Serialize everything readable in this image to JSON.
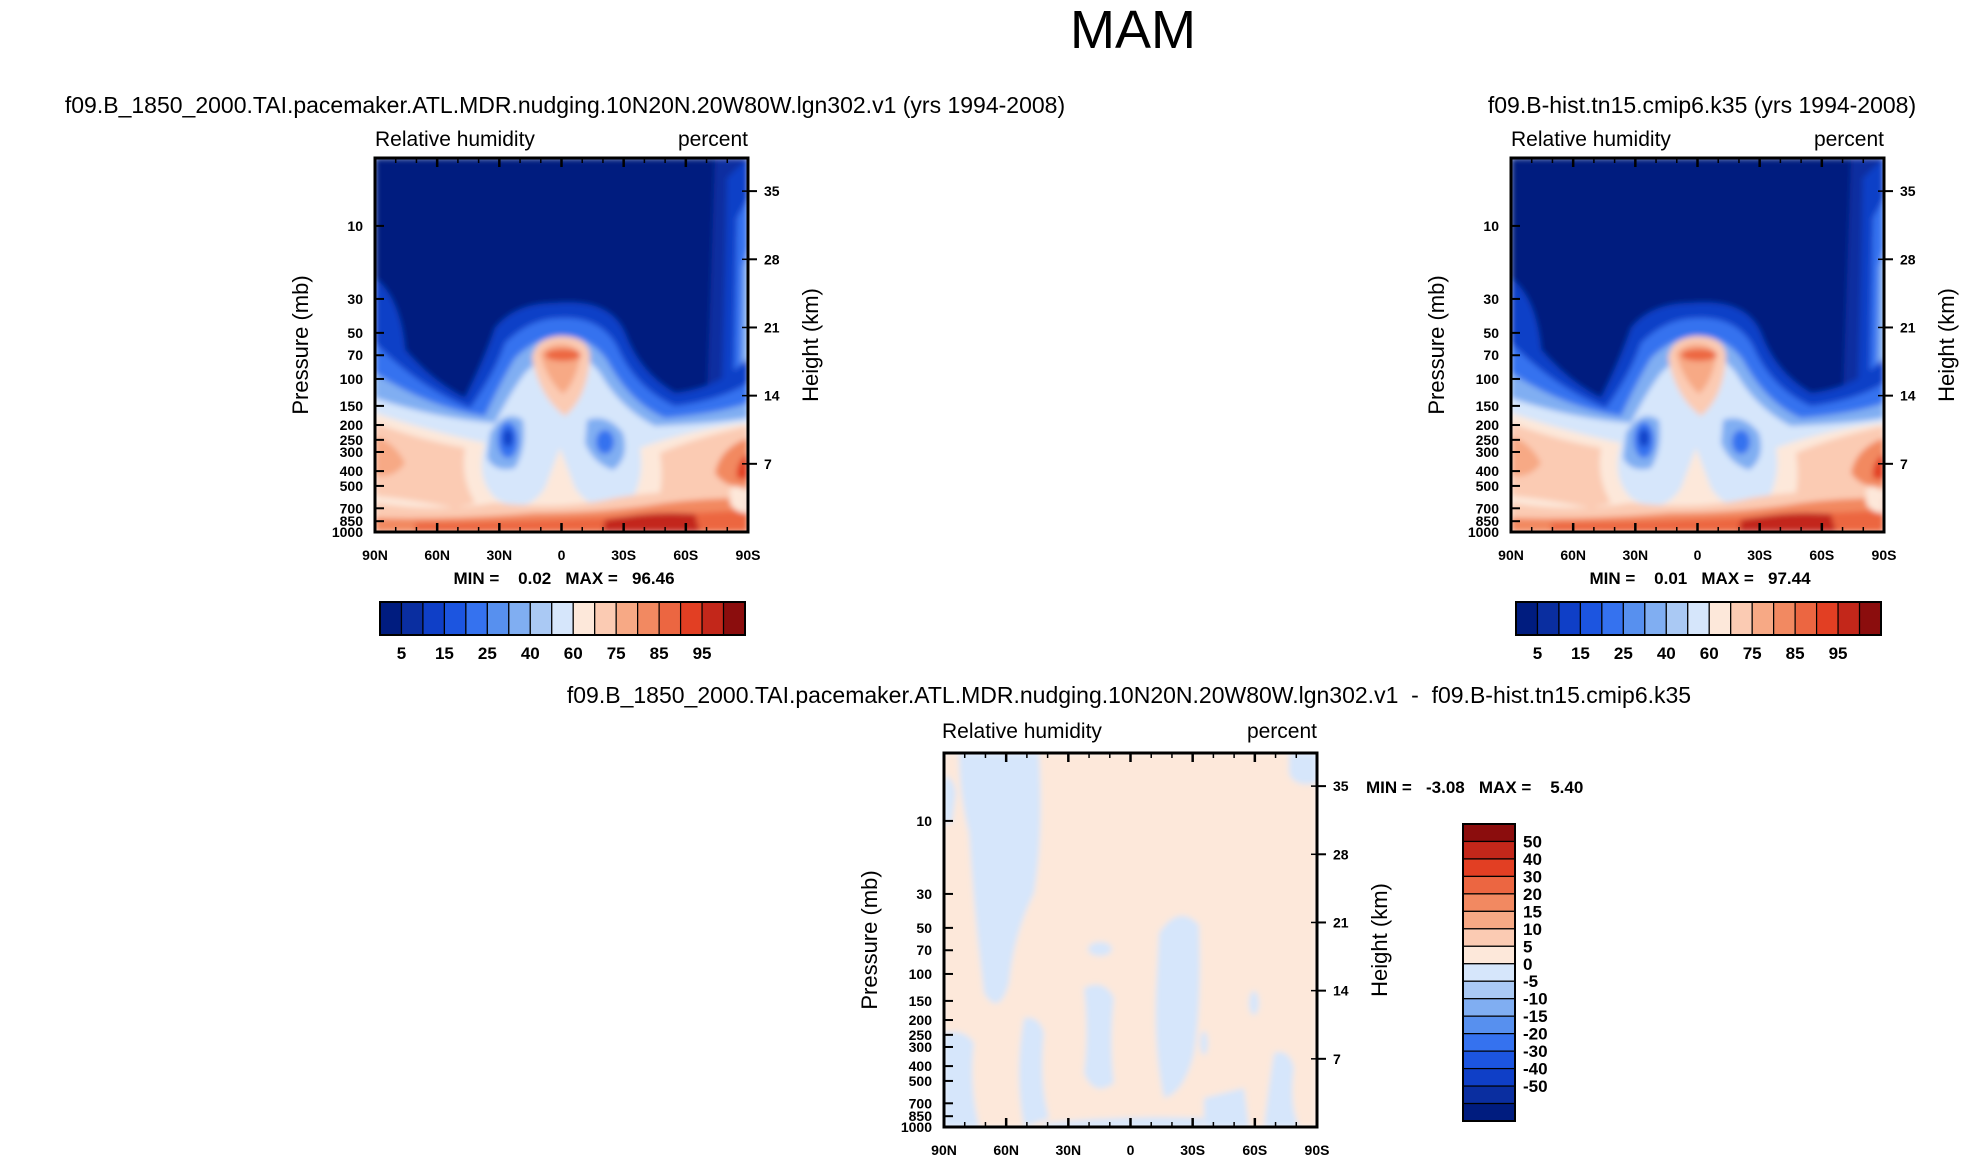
{
  "figure": {
    "title": "MAM"
  },
  "colors": {
    "rh_levels": [
      "#001c7f",
      "#0a2ea0",
      "#0f3fc7",
      "#1c55e0",
      "#3572ef",
      "#5790ef",
      "#80aef2",
      "#aac9f4",
      "#d6e6fb",
      "#fde8da",
      "#fbcbb3",
      "#f7a985",
      "#f28961",
      "#ec6641",
      "#e23f23",
      "#c3271a",
      "#8b0d0d"
    ],
    "diff_levels": [
      "#001c7f",
      "#0a2ea0",
      "#0f3fc7",
      "#1c55e0",
      "#3572ef",
      "#5790ef",
      "#80aef2",
      "#aac9f4",
      "#d6e6fb",
      "#fde8da",
      "#fbcbb3",
      "#f7a985",
      "#f28961",
      "#ec6641",
      "#e23f23",
      "#c3271a",
      "#8b0d0d"
    ]
  },
  "chart_data": [
    {
      "id": "panel-exp",
      "type": "heatmap",
      "title": "f09.B_1850_2000.TAI.pacemaker.ATL.MDR.nudging.10N20N.20W80W.lgn302.v1  (yrs 1994-2008)",
      "variable": "Relative  humidity",
      "units": "percent",
      "xlabel": "",
      "ylabel": "Pressure  (mb)",
      "ylabel_right": "Height  (km)",
      "x_ticks": [
        "90N",
        "60N",
        "30N",
        "0",
        "30S",
        "60S",
        "90S"
      ],
      "y_ticks": [
        "10",
        "30",
        "50",
        "70",
        "100",
        "150",
        "200",
        "250",
        "300",
        "400",
        "500",
        "700",
        "850",
        "1000"
      ],
      "y_ticks_right": [
        "35",
        "28",
        "21",
        "14",
        "7"
      ],
      "min_text": "MIN =    0.02   MAX =   96.46",
      "min": 0.02,
      "max": 96.46,
      "colorbar_labels": [
        "5",
        "15",
        "25",
        "40",
        "60",
        "75",
        "85",
        "95"
      ],
      "field_summary": "Dry stratosphere (<5%) poleward of 20 degrees; moist tropical upper troposphere near 100-150 mb (75-85%); dry subtropics near 400 mb (20-30%); high humidity (75-95%) near surface and in polar mid-troposphere"
    },
    {
      "id": "panel-ctl",
      "type": "heatmap",
      "title": "f09.B-hist.tn15.cmip6.k35  (yrs 1994-2008)",
      "variable": "Relative  humidity",
      "units": "percent",
      "xlabel": "",
      "ylabel": "Pressure  (mb)",
      "ylabel_right": "Height  (km)",
      "x_ticks": [
        "90N",
        "60N",
        "30N",
        "0",
        "30S",
        "60S",
        "90S"
      ],
      "y_ticks": [
        "10",
        "30",
        "50",
        "70",
        "100",
        "150",
        "200",
        "250",
        "300",
        "400",
        "500",
        "700",
        "850",
        "1000"
      ],
      "y_ticks_right": [
        "35",
        "28",
        "21",
        "14",
        "7"
      ],
      "min_text": "MIN =    0.01   MAX =   97.44",
      "min": 0.01,
      "max": 97.44,
      "colorbar_labels": [
        "5",
        "15",
        "25",
        "40",
        "60",
        "75",
        "85",
        "95"
      ]
    },
    {
      "id": "panel-diff",
      "type": "heatmap",
      "title": "f09.B_1850_2000.TAI.pacemaker.ATL.MDR.nudging.10N20N.20W80W.lgn302.v1  -  f09.B-hist.tn15.cmip6.k35",
      "variable": "Relative  humidity",
      "units": "percent",
      "xlabel": "",
      "ylabel": "Pressure  (mb)",
      "ylabel_right": "Height  (km)",
      "x_ticks": [
        "90N",
        "60N",
        "30N",
        "0",
        "30S",
        "60S",
        "90S"
      ],
      "y_ticks": [
        "10",
        "30",
        "50",
        "70",
        "100",
        "150",
        "200",
        "250",
        "300",
        "400",
        "500",
        "700",
        "850",
        "1000"
      ],
      "y_ticks_right": [
        "35",
        "28",
        "21",
        "14",
        "7"
      ],
      "min_text": "MIN =   -3.08   MAX =    5.40",
      "min": -3.08,
      "max": 5.4,
      "colorbar_labels": [
        "50",
        "40",
        "30",
        "20",
        "15",
        "10",
        "5",
        "0",
        "-5",
        "-10",
        "-15",
        "-20",
        "-30",
        "-40",
        "-50"
      ],
      "field_summary": "Mostly 0 to 5 percent (light peach) with patches of 0 to -5 percent (light blue)"
    }
  ]
}
